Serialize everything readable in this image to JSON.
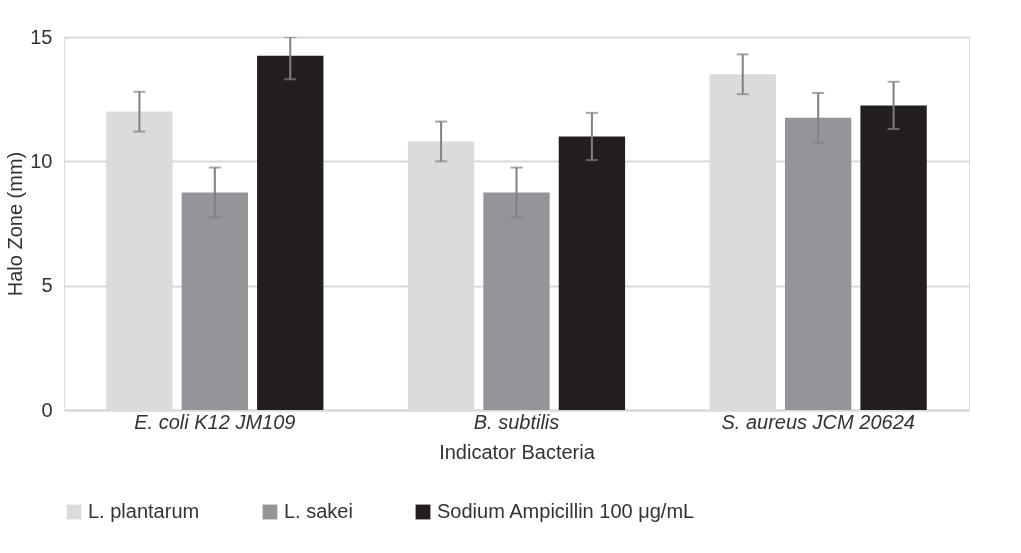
{
  "chart_data": {
    "type": "bar",
    "xlabel": "Indicator Bacteria",
    "ylabel": "Halo Zone (mm)",
    "categories": [
      "E. coli K12 JM109",
      "B. subtilis",
      "S. aureus JCM 20624"
    ],
    "series": [
      {
        "name": "L. plantarum",
        "color": "#dadbdd",
        "values": [
          12.0,
          10.8,
          13.5
        ],
        "errors": [
          0.8,
          0.8,
          0.8
        ]
      },
      {
        "name": "L. sakei",
        "color": "#939598",
        "values": [
          8.75,
          8.75,
          11.75
        ],
        "errors": [
          1.0,
          1.0,
          1.0
        ]
      },
      {
        "name": "Sodium Ampicillin 100 μg/mL",
        "color": "#231f20",
        "values": [
          14.25,
          11.0,
          12.25
        ],
        "errors": [
          [
            13.3,
            15
          ],
          0.95,
          0.95
        ]
      }
    ],
    "ylim": [
      0,
      15
    ],
    "yticks": [
      0,
      5,
      10,
      15
    ],
    "grid": "y",
    "legend": "bottom"
  }
}
